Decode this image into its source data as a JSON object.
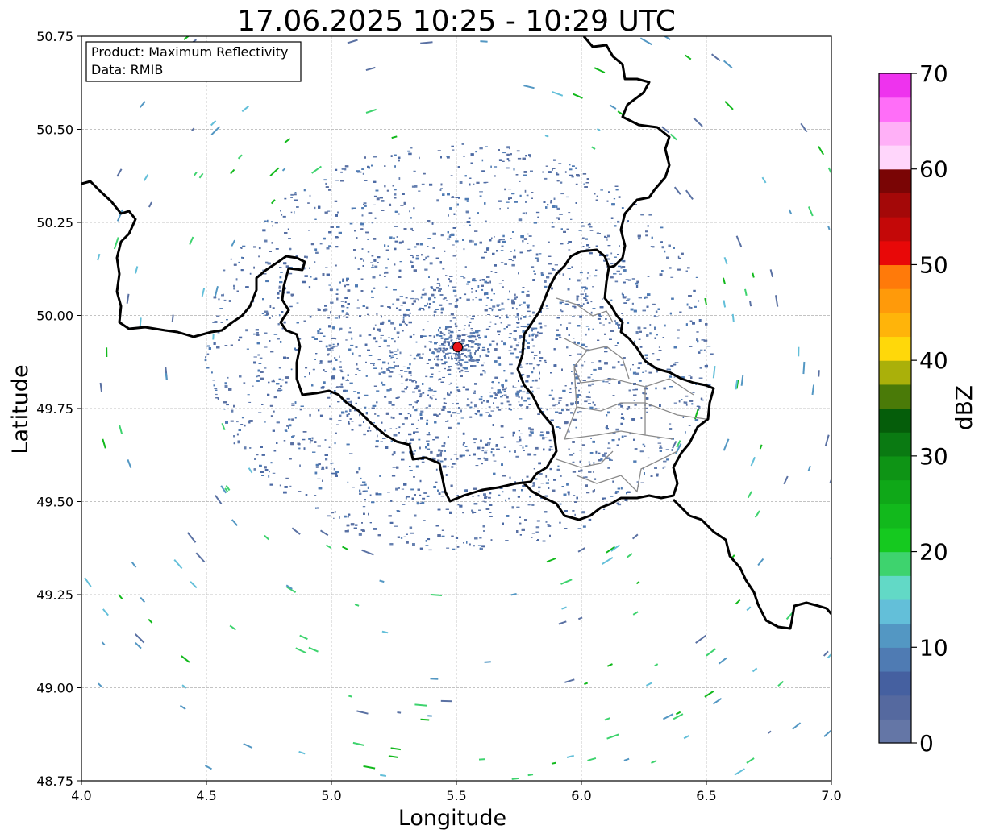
{
  "title": "17.06.2025 10:25 - 10:29 UTC",
  "xlabel": "Longitude",
  "ylabel": "Latitude",
  "info_box": {
    "product": "Product: Maximum Reflectivity",
    "data": "Data: RMIB"
  },
  "x_ticks": [
    "4.0",
    "4.5",
    "5.0",
    "5.5",
    "6.0",
    "6.5",
    "7.0"
  ],
  "y_ticks": [
    "50.75",
    "50.50",
    "50.25",
    "50.00",
    "49.75",
    "49.50",
    "49.25",
    "49.00",
    "48.75"
  ],
  "x_range": [
    4.0,
    7.0
  ],
  "y_range": [
    48.75,
    50.75
  ],
  "grid": true,
  "radar_site": {
    "lon": 5.505,
    "lat": 49.915,
    "color": "#e8141a"
  },
  "colorbar": {
    "label": "dBZ",
    "range": [
      0,
      70
    ],
    "ticks": [
      "0",
      "10",
      "20",
      "30",
      "40",
      "50",
      "60",
      "70"
    ],
    "colors": [
      "#6476a6",
      "#55699f",
      "#4560a0",
      "#4f7bb3",
      "#5397c3",
      "#63bfd9",
      "#62d9c6",
      "#3ed36e",
      "#15c91f",
      "#12b91c",
      "#0fa818",
      "#0e9415",
      "#0a7a12",
      "#055d0a",
      "#4a7a08",
      "#aab00a",
      "#ffd80a",
      "#ffb40a",
      "#ff9a0a",
      "#ff7a0a",
      "#e80808",
      "#c40808",
      "#a40808",
      "#7a0505",
      "#ffd6fb",
      "#ffb0f7",
      "#ff6ef8",
      "#ee33ee"
    ]
  }
}
